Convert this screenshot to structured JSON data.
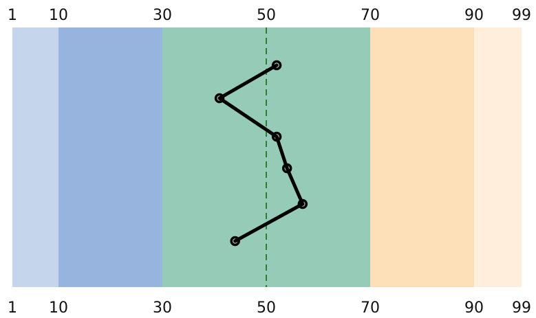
{
  "chart_data": {
    "type": "line",
    "orientation": "vertical-profile",
    "x_axis": {
      "ticks": [
        1,
        10,
        30,
        50,
        70,
        90,
        99
      ],
      "tick_labels": [
        "1",
        "10",
        "30",
        "50",
        "70",
        "90",
        "99"
      ],
      "range": [
        1,
        99
      ],
      "labels_on": [
        "top",
        "bottom"
      ]
    },
    "bands": [
      {
        "from": 1,
        "to": 10,
        "color": "#c5d5ec"
      },
      {
        "from": 10,
        "to": 30,
        "color": "#96b4de"
      },
      {
        "from": 30,
        "to": 70,
        "color": "#96cbb8"
      },
      {
        "from": 70,
        "to": 90,
        "color": "#fddfb8"
      },
      {
        "from": 90,
        "to": 99,
        "color": "#feeedb"
      }
    ],
    "reference_line": {
      "x": 50,
      "style": "dashed",
      "color": "#2f7d2f"
    },
    "series": [
      {
        "values": [
          52,
          41,
          52,
          54,
          57,
          44
        ],
        "color": "#000000",
        "marker": "circle"
      }
    ],
    "grid": false,
    "legend": "none"
  }
}
